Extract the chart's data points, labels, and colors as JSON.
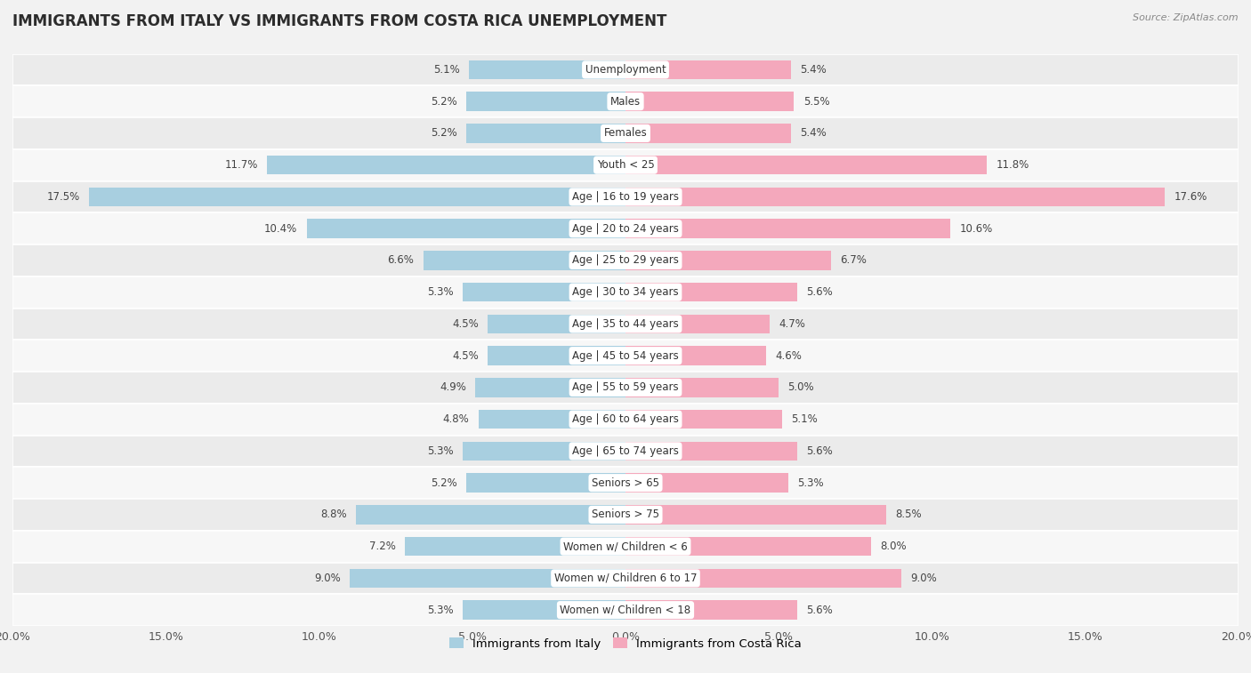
{
  "title": "IMMIGRANTS FROM ITALY VS IMMIGRANTS FROM COSTA RICA UNEMPLOYMENT",
  "source": "Source: ZipAtlas.com",
  "categories": [
    "Unemployment",
    "Males",
    "Females",
    "Youth < 25",
    "Age | 16 to 19 years",
    "Age | 20 to 24 years",
    "Age | 25 to 29 years",
    "Age | 30 to 34 years",
    "Age | 35 to 44 years",
    "Age | 45 to 54 years",
    "Age | 55 to 59 years",
    "Age | 60 to 64 years",
    "Age | 65 to 74 years",
    "Seniors > 65",
    "Seniors > 75",
    "Women w/ Children < 6",
    "Women w/ Children 6 to 17",
    "Women w/ Children < 18"
  ],
  "italy_values": [
    5.1,
    5.2,
    5.2,
    11.7,
    17.5,
    10.4,
    6.6,
    5.3,
    4.5,
    4.5,
    4.9,
    4.8,
    5.3,
    5.2,
    8.8,
    7.2,
    9.0,
    5.3
  ],
  "costa_rica_values": [
    5.4,
    5.5,
    5.4,
    11.8,
    17.6,
    10.6,
    6.7,
    5.6,
    4.7,
    4.6,
    5.0,
    5.1,
    5.6,
    5.3,
    8.5,
    8.0,
    9.0,
    5.6
  ],
  "italy_color": "#a8cfe0",
  "costa_rica_color": "#f4a8bc",
  "background_color": "#f2f2f2",
  "row_colors": [
    "#ebebeb",
    "#f7f7f7"
  ],
  "axis_limit": 20.0,
  "bar_height": 0.6,
  "label_fontsize": 8.5,
  "title_fontsize": 12,
  "source_fontsize": 8,
  "legend_italy": "Immigrants from Italy",
  "legend_costa_rica": "Immigrants from Costa Rica",
  "xtick_step": 5
}
